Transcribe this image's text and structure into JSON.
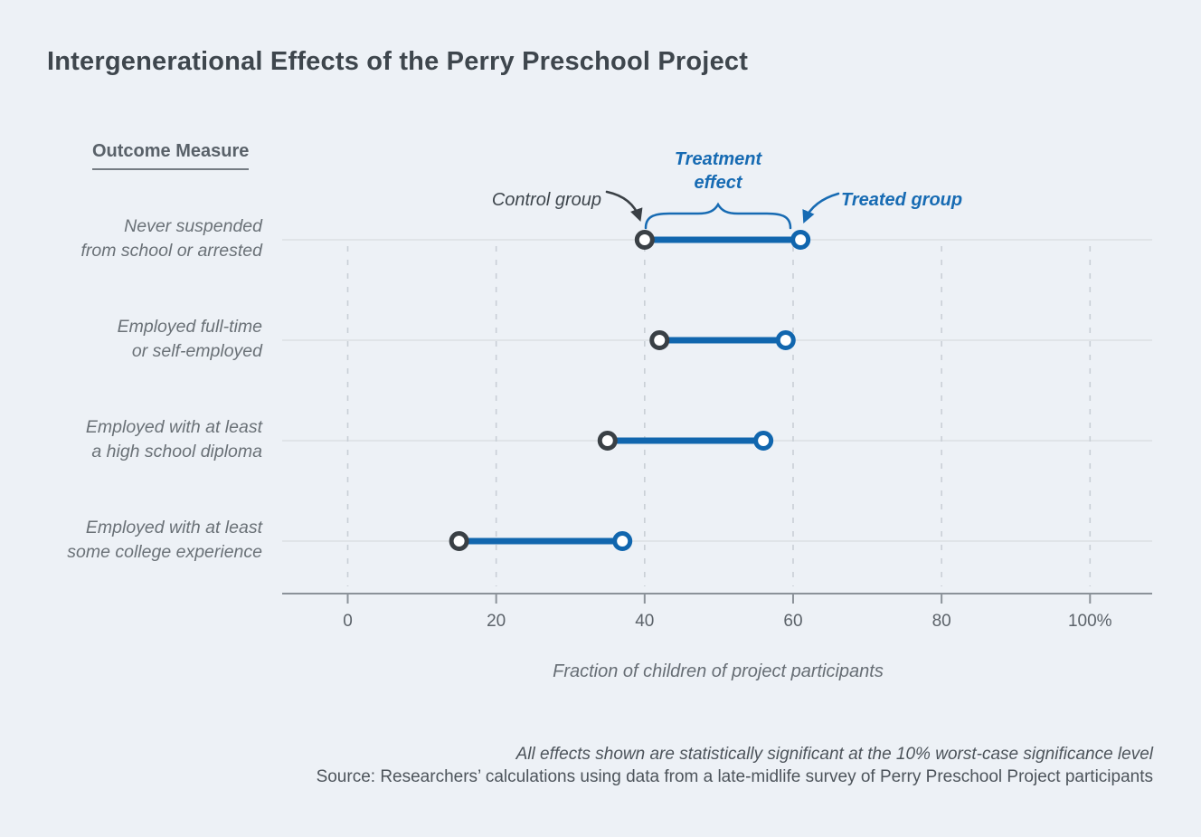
{
  "title": "Intergenerational Effects of the Perry Preschool Project",
  "outcome_header": "Outcome Measure",
  "annotations": {
    "control_group": "Control group",
    "treatment_effect_line1": "Treatment",
    "treatment_effect_line2": "effect",
    "treated_group": "Treated group"
  },
  "xlabel": "Fraction of children of project participants",
  "footnotes": {
    "significance": "All effects shown are statistically significant at the 10% worst-case significance level",
    "source": "Source: Researchers’ calculations using data from a late-midlife survey of Perry Preschool Project participants"
  },
  "colors": {
    "background": "#edf1f6",
    "accent_blue": "#1166ae",
    "annotation_blue": "#176bb3",
    "control_dark": "#3a4045",
    "title_ink": "#3e464d",
    "label_gray": "#6a7177",
    "axis_gray": "#8b9299",
    "row_gridline": "#dbdfe4",
    "dashed_gridline": "#c9cfd6",
    "footnote_ink": "#4d545b"
  },
  "chart_data": {
    "type": "dumbbell",
    "title": "Intergenerational Effects of the Perry Preschool Project",
    "xlabel": "Fraction of children of project participants",
    "categories": [
      [
        "Never suspended",
        "from school or arrested"
      ],
      [
        "Employed full-time",
        "or self-employed"
      ],
      [
        "Employed with at least",
        "a high school diploma"
      ],
      [
        "Employed with at least",
        "some college experience"
      ]
    ],
    "series": [
      {
        "name": "Control group",
        "values": [
          40,
          42,
          35,
          15
        ]
      },
      {
        "name": "Treated group",
        "values": [
          61,
          59,
          56,
          37
        ]
      }
    ],
    "x_ticks": [
      "0",
      "20",
      "40",
      "60",
      "80",
      "100%"
    ],
    "x_tick_values": [
      0,
      20,
      40,
      60,
      80,
      100
    ],
    "xlim": [
      -9,
      108
    ],
    "grid": "vertical-dashed",
    "legend_position": "annotated-inline"
  }
}
